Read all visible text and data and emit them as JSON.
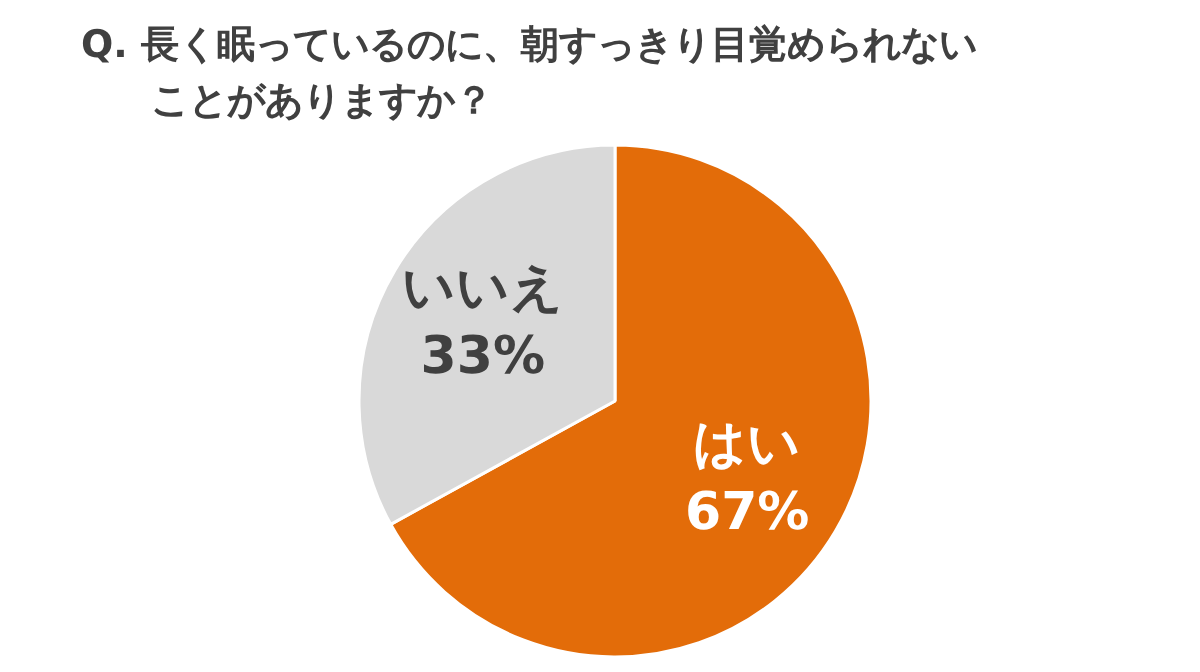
{
  "chart_data": {
    "type": "pie",
    "title": "Q.  長く眠っているのに、朝すっきり目覚められないことがありますか？",
    "categories": [
      "はい",
      "いいえ"
    ],
    "values": [
      67,
      33
    ],
    "value_labels": [
      "67%",
      "33%"
    ],
    "colors": [
      "#e36c09",
      "#d9d9d9"
    ]
  }
}
